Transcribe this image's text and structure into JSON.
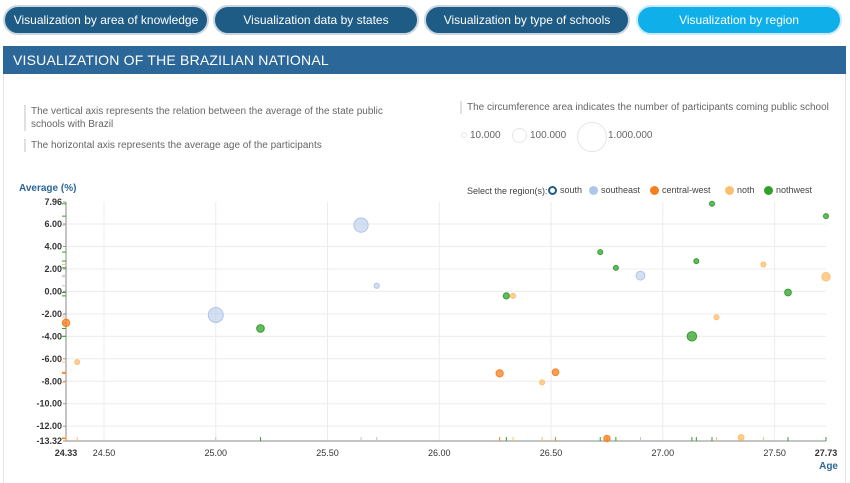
{
  "tabs": [
    {
      "label": "Visualization by area of knowledge"
    },
    {
      "label": "Visualization data by states"
    },
    {
      "label": "Visualization by type of schools"
    },
    {
      "label": "Visualization by region"
    }
  ],
  "header": {
    "title": "VISUALIZATION OF THE BRAZILIAN NATIONAL"
  },
  "notes": {
    "vertical": "The vertical axis represents the relation between the average of the state public schools with Brazil",
    "horizontal": "The horizontal axis represents the average age of the participants",
    "circumference": "The circumference area indicates the number of participants coming public school"
  },
  "size_legend": [
    {
      "label": "10.000",
      "value": 10000
    },
    {
      "label": "100.000",
      "value": 100000
    },
    {
      "label": "1.000.000",
      "value": 1000000
    }
  ],
  "legend": {
    "prompt": "Select the region(s):",
    "items": [
      {
        "label": "south",
        "color": "#1f5c8a",
        "hollow": true
      },
      {
        "label": "southeast",
        "color": "#aec7e8"
      },
      {
        "label": "central-west",
        "color": "#f5801f"
      },
      {
        "label": "noth",
        "color": "#fdbf6f"
      },
      {
        "label": "nothwest",
        "color": "#33a02c"
      }
    ]
  },
  "colors": {
    "southeast": "#aec7e8",
    "central-west": "#f5801f",
    "noth": "#fdbf6f",
    "nothwest": "#33a02c",
    "south": "#1f5c8a",
    "axis_title": "#2b6799",
    "grid": "#ececec"
  },
  "chart_data": {
    "type": "scatter",
    "ylabel": "Average (%)",
    "xlabel": "Age",
    "xlim": [
      24.33,
      27.73
    ],
    "ylim": [
      -13.32,
      7.96
    ],
    "x_ticks": [
      "24.33",
      "24.50",
      "25.00",
      "25.50",
      "26.00",
      "26.50",
      "27.00",
      "27.50",
      "27.73"
    ],
    "y_ticks": [
      "7.96",
      "6.00",
      "4.00",
      "2.00",
      "0.00",
      "-2.00",
      "-4.00",
      "-6.00",
      "-8.00",
      "-10.00",
      "-12.00",
      "-13.32"
    ],
    "grid": true,
    "series": [
      {
        "name": "southeast",
        "points": [
          {
            "x": 25.0,
            "y": -2.1,
            "size": 1000000
          },
          {
            "x": 25.65,
            "y": 5.9,
            "size": 900000
          },
          {
            "x": 25.72,
            "y": 0.5,
            "size": 120000
          },
          {
            "x": 26.9,
            "y": 1.4,
            "size": 350000
          }
        ]
      },
      {
        "name": "central-west",
        "points": [
          {
            "x": 24.33,
            "y": -2.8,
            "size": 250000
          },
          {
            "x": 26.27,
            "y": -7.3,
            "size": 230000
          },
          {
            "x": 26.52,
            "y": -7.2,
            "size": 200000
          },
          {
            "x": 26.75,
            "y": -13.1,
            "size": 180000
          }
        ]
      },
      {
        "name": "noth",
        "points": [
          {
            "x": 24.38,
            "y": -6.3,
            "size": 60000
          },
          {
            "x": 26.33,
            "y": -0.4,
            "size": 60000
          },
          {
            "x": 26.46,
            "y": -8.1,
            "size": 50000
          },
          {
            "x": 27.24,
            "y": -2.3,
            "size": 60000
          },
          {
            "x": 27.35,
            "y": -13.0,
            "size": 150000
          },
          {
            "x": 27.45,
            "y": 2.4,
            "size": 60000
          },
          {
            "x": 27.73,
            "y": 1.3,
            "size": 320000
          }
        ]
      },
      {
        "name": "nothwest",
        "points": [
          {
            "x": 25.2,
            "y": -3.3,
            "size": 260000
          },
          {
            "x": 26.3,
            "y": -0.4,
            "size": 170000
          },
          {
            "x": 26.72,
            "y": 3.5,
            "size": 80000
          },
          {
            "x": 26.79,
            "y": 2.1,
            "size": 80000
          },
          {
            "x": 27.13,
            "y": -4.0,
            "size": 400000
          },
          {
            "x": 27.15,
            "y": 2.7,
            "size": 80000
          },
          {
            "x": 27.22,
            "y": 7.8,
            "size": 90000
          },
          {
            "x": 27.56,
            "y": -0.1,
            "size": 200000
          },
          {
            "x": 27.73,
            "y": 6.7,
            "size": 100000
          }
        ]
      }
    ]
  }
}
